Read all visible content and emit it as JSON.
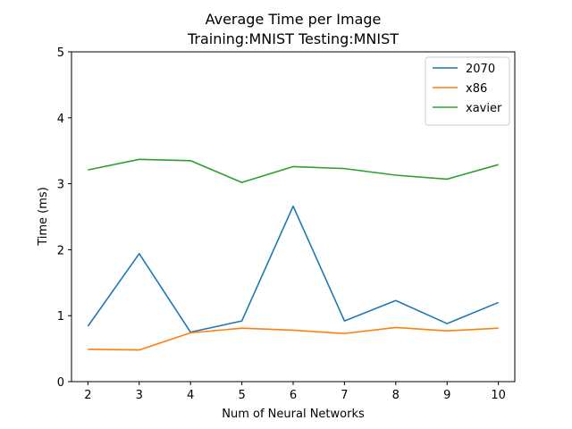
{
  "chart_data": {
    "type": "line",
    "title": "Average Time per Image",
    "subtitle": "Training:MNIST   Testing:MNIST",
    "xlabel": "Num of Neural Networks",
    "ylabel": "Time (ms)",
    "xlim": [
      1.68,
      10.32
    ],
    "ylim": [
      0,
      5
    ],
    "x": [
      2,
      3,
      4,
      5,
      6,
      7,
      8,
      9,
      10
    ],
    "xticks": [
      "2",
      "3",
      "4",
      "5",
      "6",
      "7",
      "8",
      "9",
      "10"
    ],
    "yticks": [
      "0",
      "1",
      "2",
      "3",
      "4",
      "5"
    ],
    "grid": false,
    "legend_position": "top-right",
    "series": [
      {
        "name": "2070",
        "color": "#1f77b4",
        "values": [
          0.84,
          1.94,
          0.75,
          0.92,
          2.66,
          0.92,
          1.23,
          0.88,
          1.2
        ]
      },
      {
        "name": "x86",
        "color": "#ff7f0e",
        "values": [
          0.49,
          0.48,
          0.74,
          0.81,
          0.78,
          0.73,
          0.82,
          0.77,
          0.81
        ]
      },
      {
        "name": "xavier",
        "color": "#2ca02c",
        "values": [
          3.21,
          3.37,
          3.35,
          3.02,
          3.26,
          3.23,
          3.13,
          3.07,
          3.29
        ]
      }
    ]
  }
}
